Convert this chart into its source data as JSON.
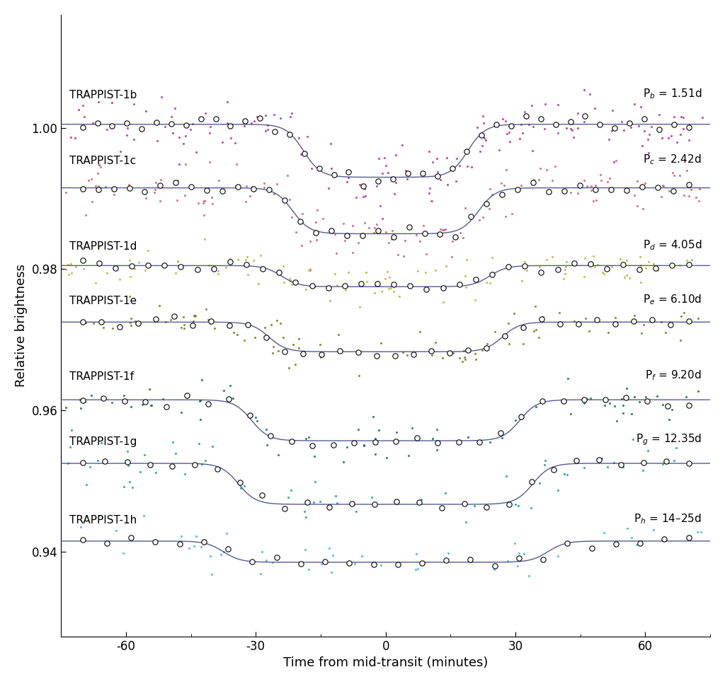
{
  "planets": [
    {
      "name": "TRAPPIST-1b",
      "period_label": "P$_b$ = 1.51d",
      "color": "#b030a0",
      "baseline": 1.0005,
      "depth": 0.0075,
      "t_contact1": -23,
      "t_contact2": -15,
      "t_contact3": 15,
      "t_contact4": 23,
      "scatter": 0.0022,
      "n_scatter": 160,
      "n_binned": 42
    },
    {
      "name": "TRAPPIST-1c",
      "period_label": "P$_c$ = 2.42d",
      "color": "#cc6070",
      "baseline": 0.9915,
      "depth": 0.0065,
      "t_contact1": -26,
      "t_contact2": -17,
      "t_contact3": 17,
      "t_contact4": 26,
      "scatter": 0.002,
      "n_scatter": 140,
      "n_binned": 40
    },
    {
      "name": "TRAPPIST-1d",
      "period_label": "P$_d$ = 4.05d",
      "color": "#c8b030",
      "baseline": 0.9805,
      "depth": 0.003,
      "t_contact1": -28,
      "t_contact2": -20,
      "t_contact3": 20,
      "t_contact4": 28,
      "scatter": 0.0014,
      "n_scatter": 110,
      "n_binned": 38
    },
    {
      "name": "TRAPPIST-1e",
      "period_label": "P$_e$ = 6.10d",
      "color": "#7a7a10",
      "baseline": 0.9725,
      "depth": 0.0042,
      "t_contact1": -32,
      "t_contact2": -22,
      "t_contact3": 22,
      "t_contact4": 32,
      "scatter": 0.0015,
      "n_scatter": 90,
      "n_binned": 34
    },
    {
      "name": "TRAPPIST-1f",
      "period_label": "P$_f$ = 9.20d",
      "color": "#107040",
      "baseline": 0.9615,
      "depth": 0.0058,
      "t_contact1": -37,
      "t_contact2": -25,
      "t_contact3": 25,
      "t_contact4": 37,
      "scatter": 0.0016,
      "n_scatter": 75,
      "n_binned": 30
    },
    {
      "name": "TRAPPIST-1g",
      "period_label": "P$_g$ = 12.35d",
      "color": "#10a0a0",
      "baseline": 0.9525,
      "depth": 0.0058,
      "t_contact1": -40,
      "t_contact2": -28,
      "t_contact3": 28,
      "t_contact4": 40,
      "scatter": 0.0014,
      "n_scatter": 60,
      "n_binned": 28
    },
    {
      "name": "TRAPPIST-1h",
      "period_label": "P$_h$ = 14–25d",
      "color": "#30b8e0",
      "baseline": 0.9415,
      "depth": 0.003,
      "t_contact1": -45,
      "t_contact2": -30,
      "t_contact3": 30,
      "t_contact4": 45,
      "scatter": 0.0016,
      "n_scatter": 50,
      "n_binned": 26
    }
  ],
  "xlim": [
    -75,
    75
  ],
  "ylim": [
    0.928,
    1.016
  ],
  "ylabel": "Relative brightness",
  "xlabel": "Time from mid-transit (minutes)",
  "yticks": [
    0.94,
    0.96,
    0.98,
    1.0
  ],
  "xticks": [
    -60,
    -30,
    0,
    30,
    60
  ],
  "curve_color": "#354080",
  "background_color": "#ffffff",
  "label_fontsize": 13,
  "tick_fontsize": 12,
  "planet_label_fontsize": 11
}
